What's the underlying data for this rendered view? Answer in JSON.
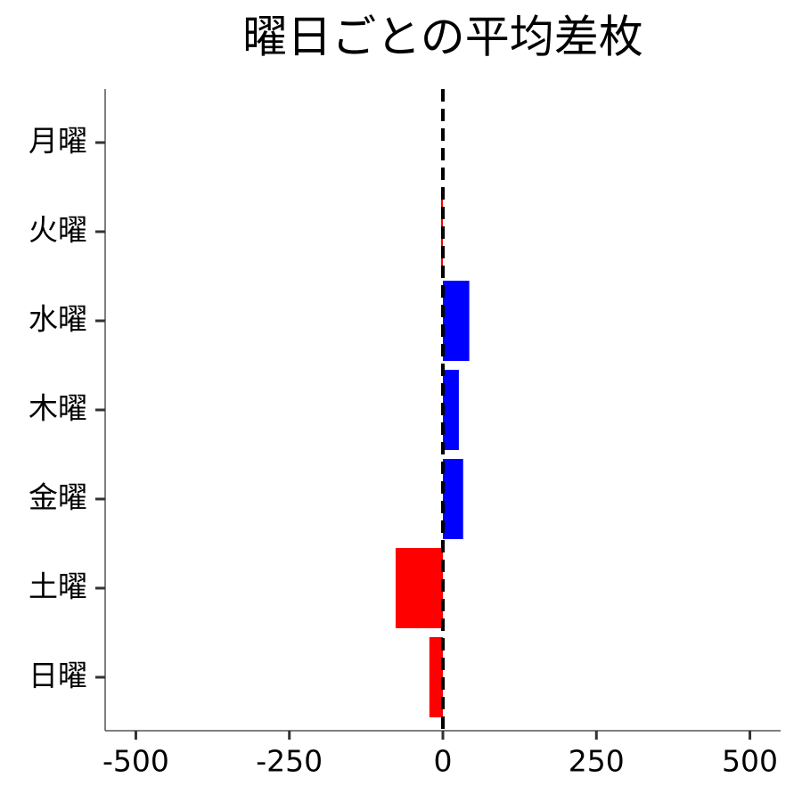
{
  "chart_data": {
    "type": "barh",
    "title": "曜日ごとの平均差枚",
    "categories": [
      "月曜",
      "火曜",
      "水曜",
      "木曜",
      "金曜",
      "土曜",
      "日曜"
    ],
    "values": [
      0,
      -3,
      43,
      26,
      33,
      -77,
      -22
    ],
    "positive_color": "#0000ff",
    "negative_color": "#ff0000",
    "xlim": [
      -550,
      550
    ],
    "xticks": [
      -500,
      -250,
      0,
      250,
      500
    ],
    "vline": 0,
    "grid": false
  }
}
